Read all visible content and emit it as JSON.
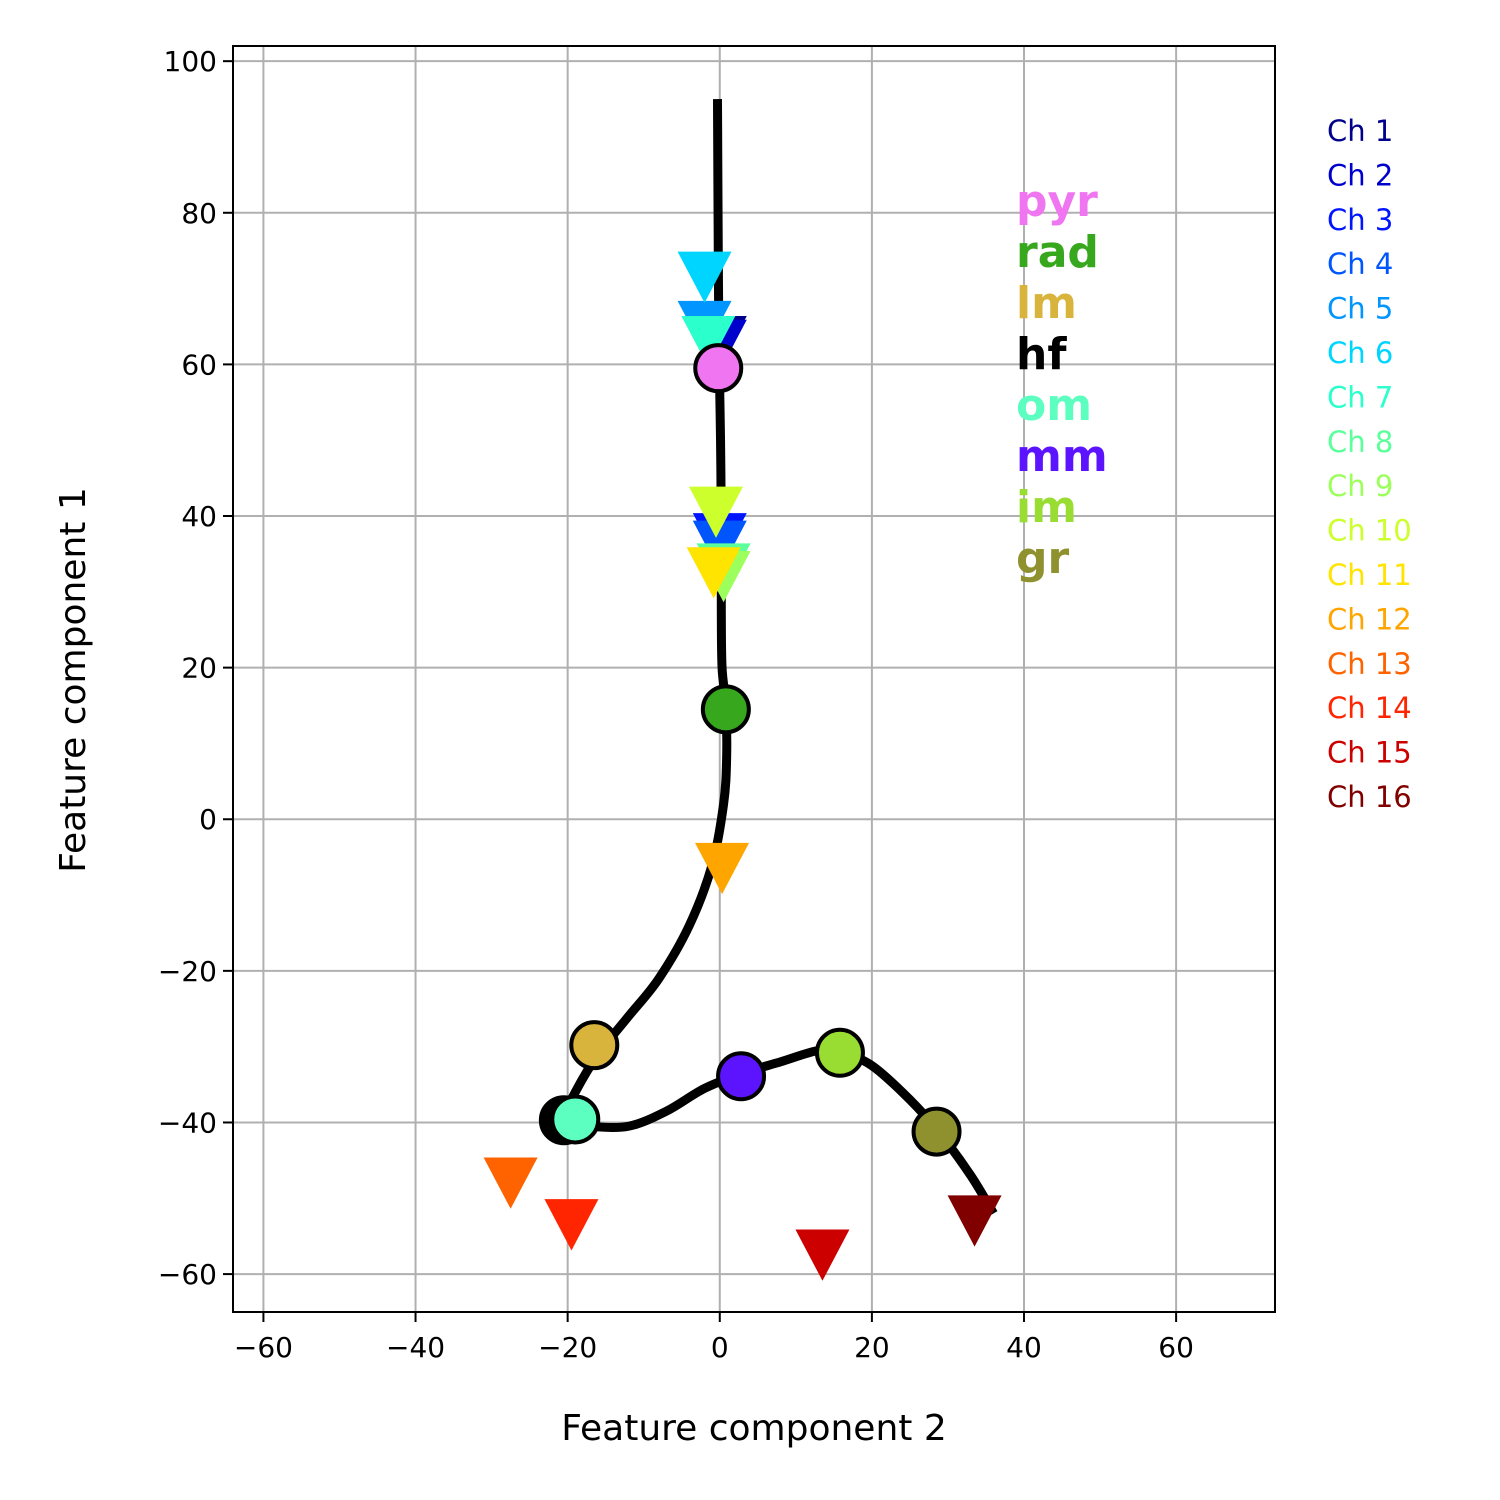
{
  "chart_data": {
    "type": "scatter",
    "xlabel": "Feature component 2",
    "ylabel": "Feature component 1",
    "xlim": [
      -64,
      73
    ],
    "ylim": [
      -65,
      102
    ],
    "xticks": [
      -60,
      -40,
      -20,
      0,
      20,
      40,
      60
    ],
    "yticks": [
      -60,
      -40,
      -20,
      0,
      20,
      40,
      60,
      80,
      100
    ],
    "grid": true,
    "curve": [
      [
        -0.3,
        95
      ],
      [
        -0.2,
        75
      ],
      [
        -0.1,
        62
      ],
      [
        0.1,
        50
      ],
      [
        0.2,
        38
      ],
      [
        0.2,
        28
      ],
      [
        0.3,
        20
      ],
      [
        0.8,
        15
      ],
      [
        0.9,
        8
      ],
      [
        0.5,
        2
      ],
      [
        -1,
        -6
      ],
      [
        -4,
        -14
      ],
      [
        -8,
        -21
      ],
      [
        -12,
        -26
      ],
      [
        -16,
        -31
      ],
      [
        -19,
        -36
      ],
      [
        -20.5,
        -39.5
      ],
      [
        -20,
        -40
      ],
      [
        -17,
        -40.5
      ],
      [
        -12,
        -40.5
      ],
      [
        -7,
        -38.5
      ],
      [
        -2,
        -35.5
      ],
      [
        3,
        -33.5
      ],
      [
        8,
        -32
      ],
      [
        13,
        -30.5
      ],
      [
        16,
        -30.8
      ],
      [
        20,
        -32.5
      ],
      [
        25,
        -37
      ],
      [
        29,
        -41.5
      ],
      [
        33,
        -47
      ],
      [
        36,
        -52
      ]
    ],
    "layers": [
      {
        "name": "pyr",
        "x": -0.2,
        "y": 59.5,
        "color": "#f075f0"
      },
      {
        "name": "rad",
        "x": 0.8,
        "y": 14.5,
        "color": "#37a81d"
      },
      {
        "name": "lm",
        "x": -16.5,
        "y": -29.8,
        "color": "#d9b43c"
      },
      {
        "name": "hf",
        "x": -20.5,
        "y": -39.7,
        "color": "#000000"
      },
      {
        "name": "om",
        "x": -19,
        "y": -39.6,
        "color": "#5cffbf"
      },
      {
        "name": "mm",
        "x": 2.8,
        "y": -33.9,
        "color": "#5c14ff"
      },
      {
        "name": "im",
        "x": 15.8,
        "y": -30.8,
        "color": "#99dd33"
      },
      {
        "name": "gr",
        "x": 28.5,
        "y": -41.2,
        "color": "#8f912e"
      }
    ],
    "channels": [
      {
        "name": "Ch 1",
        "x": 0,
        "y": 63,
        "color": "#00008b"
      },
      {
        "name": "Ch 2",
        "x": 0,
        "y": 62.5,
        "color": "#0000cd"
      },
      {
        "name": "Ch 3",
        "x": 0,
        "y": 37,
        "color": "#0015ff"
      },
      {
        "name": "Ch 4",
        "x": 0,
        "y": 36,
        "color": "#0055ff"
      },
      {
        "name": "Ch 5",
        "x": -2,
        "y": 65,
        "color": "#0095ff"
      },
      {
        "name": "Ch 6",
        "x": -2,
        "y": 71.5,
        "color": "#00d5ff"
      },
      {
        "name": "Ch 7",
        "x": -1.5,
        "y": 63,
        "color": "#2bffcc"
      },
      {
        "name": "Ch 8",
        "x": 0.5,
        "y": 33,
        "color": "#5bff9c"
      },
      {
        "name": "Ch 9",
        "x": 0.5,
        "y": 32,
        "color": "#9cff5b"
      },
      {
        "name": "Ch 10",
        "x": -0.5,
        "y": 40.5,
        "color": "#ccff2b"
      },
      {
        "name": "Ch 11",
        "x": -0.8,
        "y": 32.5,
        "color": "#ffe400"
      },
      {
        "name": "Ch 12",
        "x": 0.3,
        "y": -6.5,
        "color": "#ffa500"
      },
      {
        "name": "Ch 13",
        "x": -27.5,
        "y": -48,
        "color": "#ff6300"
      },
      {
        "name": "Ch 14",
        "x": -19.5,
        "y": -53.5,
        "color": "#ff2500"
      },
      {
        "name": "Ch 15",
        "x": 13.5,
        "y": -57.5,
        "color": "#cd0000"
      },
      {
        "name": "Ch 16",
        "x": 33.5,
        "y": -53,
        "color": "#800000"
      }
    ]
  }
}
